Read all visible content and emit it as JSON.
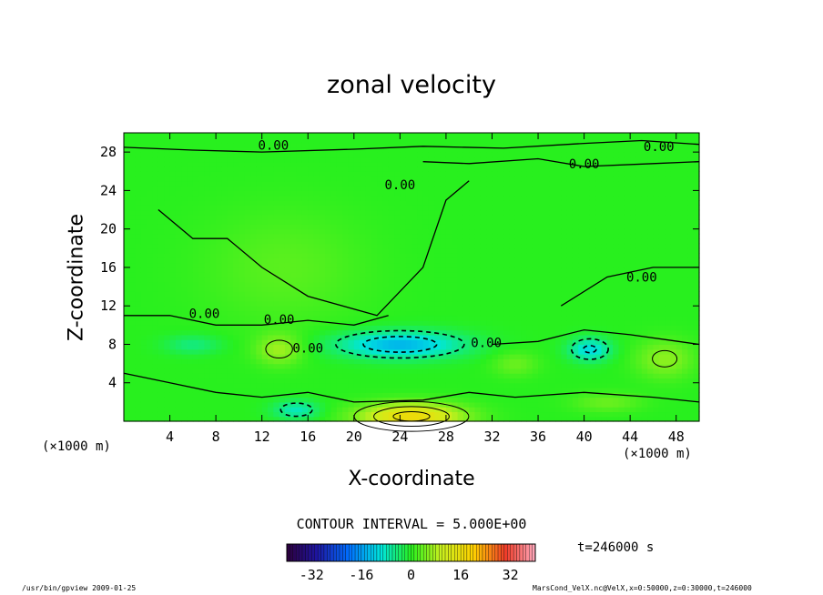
{
  "chart_data": {
    "type": "heatmap",
    "title": "zonal velocity",
    "xlabel": "X-coordinate",
    "ylabel": "Z-coordinate",
    "x_unit_left": "(×1000 m)",
    "x_unit_right": "(×1000 m)",
    "xlim": [
      0,
      50
    ],
    "ylim": [
      0,
      30
    ],
    "x_ticks": [
      4,
      8,
      12,
      16,
      20,
      24,
      28,
      32,
      36,
      40,
      44,
      48
    ],
    "y_ticks": [
      4,
      8,
      12,
      16,
      20,
      24,
      28
    ],
    "contour_interval_text": "CONTOUR INTERVAL = 5.000E+00",
    "contour_labels": [
      "0.00",
      "0.00",
      "0.00",
      "0.00",
      "0.00",
      "0.00",
      "0.00",
      "0.00",
      "0.00"
    ],
    "colorbar": {
      "range": [
        -40,
        40
      ],
      "ticks": [
        -32,
        -16,
        0,
        16,
        32
      ]
    },
    "time_label": "t=246000 s",
    "blobs": [
      {
        "x": 24,
        "y": 8.0,
        "sx": 5.5,
        "sy": 1.4,
        "v": -14
      },
      {
        "x": 40.5,
        "y": 7.5,
        "sx": 1.8,
        "sy": 1.2,
        "v": -11
      },
      {
        "x": 15,
        "y": 1.2,
        "sx": 2.0,
        "sy": 1.0,
        "v": -8
      },
      {
        "x": 6,
        "y": 8.0,
        "sx": 2.5,
        "sy": 1.0,
        "v": -5
      },
      {
        "x": 25,
        "y": 0.5,
        "sx": 4.5,
        "sy": 1.4,
        "v": 17
      },
      {
        "x": 13.5,
        "y": 7.5,
        "sx": 2.0,
        "sy": 1.6,
        "v": 7
      },
      {
        "x": 47,
        "y": 6.5,
        "sx": 2.5,
        "sy": 2.0,
        "v": 6
      },
      {
        "x": 34,
        "y": 6.0,
        "sx": 2.0,
        "sy": 1.3,
        "v": 4
      },
      {
        "x": 42,
        "y": 2.0,
        "sx": 3.0,
        "sy": 1.0,
        "v": 4
      },
      {
        "x": 14,
        "y": 16,
        "sx": 7.0,
        "sy": 6.0,
        "v": 3
      }
    ]
  },
  "footer": {
    "left": "/usr/bin/gpview   2009-01-25",
    "right": "MarsCond_VelX.nc@VelX,x=0:50000,z=0:30000,t=246000"
  },
  "colors": {
    "zero": "#2af01e",
    "frame": "#000000"
  }
}
